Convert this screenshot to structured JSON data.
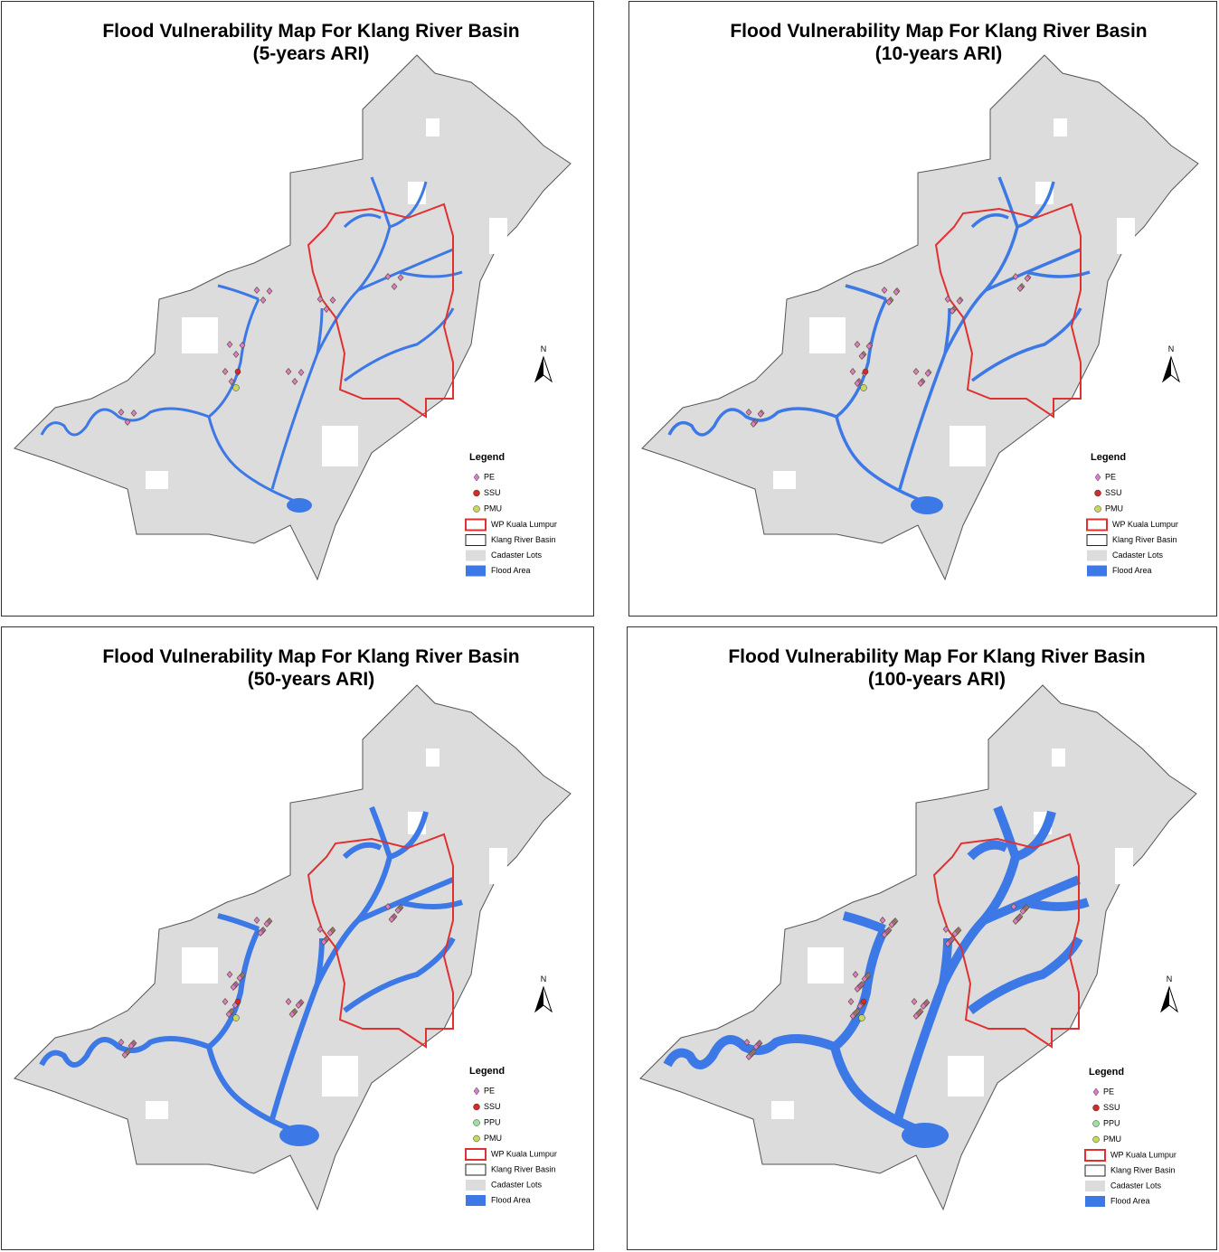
{
  "panels": [
    {
      "title": "Flood Vulnerability Map For Klang River Basin",
      "subtitle": "(5-years ARI)",
      "north": "N",
      "legend": {
        "title": "Legend",
        "points": [
          "PE",
          "SSU",
          "PMU"
        ],
        "areas": [
          "WP Kuala Lumpur",
          "Klang River Basin",
          "Cadaster Lots",
          "Flood Area"
        ]
      }
    },
    {
      "title": "Flood Vulnerability Map For Klang River Basin",
      "subtitle": "(10-years ARI)",
      "north": "N",
      "legend": {
        "title": "Legend",
        "points": [
          "PE",
          "SSU",
          "PMU"
        ],
        "areas": [
          "WP Kuala Lumpur",
          "Klang River Basin",
          "Cadaster Lots",
          "Flood Area"
        ]
      }
    },
    {
      "title": "Flood Vulnerability Map For Klang River Basin",
      "subtitle": "(50-years ARI)",
      "north": "N",
      "legend": {
        "title": "Legend",
        "points": [
          "PE",
          "SSU",
          "PPU",
          "PMU"
        ],
        "areas": [
          "WP Kuala Lumpur",
          "Klang River Basin",
          "Cadaster Lots",
          "Flood Area"
        ]
      }
    },
    {
      "title": "Flood Vulnerability Map For Klang River Basin",
      "subtitle": "(100-years ARI)",
      "north": "N",
      "legend": {
        "title": "Legend",
        "points": [
          "PE",
          "SSU",
          "PPU",
          "PMU"
        ],
        "areas": [
          "WP Kuala Lumpur",
          "Klang River Basin",
          "Cadaster Lots",
          "Flood Area"
        ]
      }
    }
  ]
}
